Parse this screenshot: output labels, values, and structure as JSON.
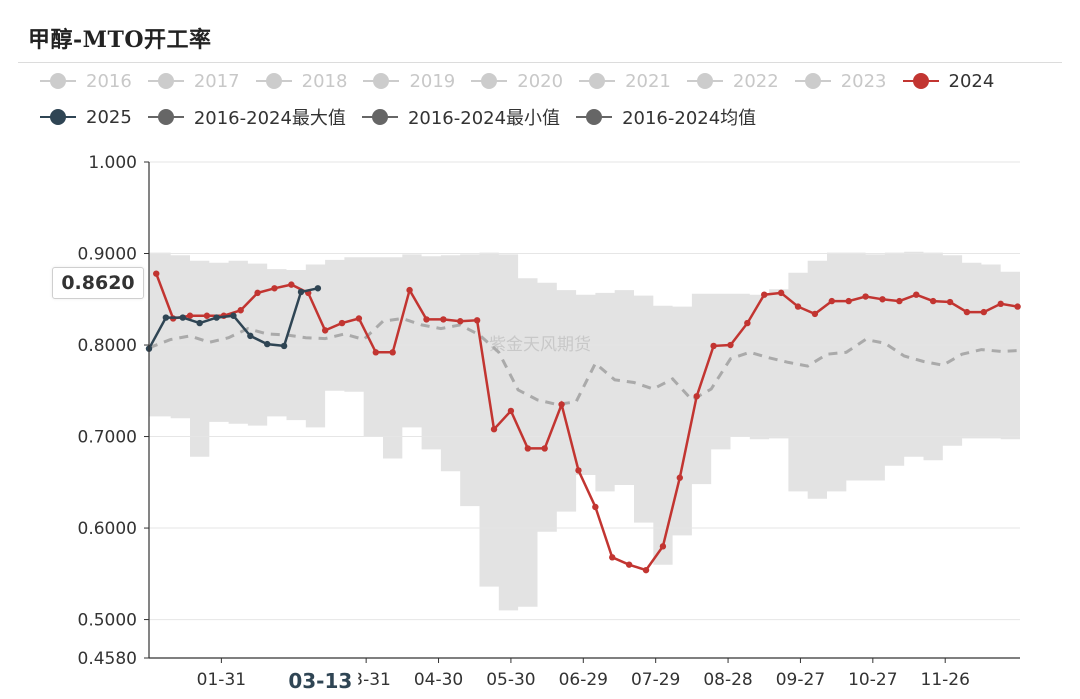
{
  "title": "甲醇-MTO开工率",
  "watermark": "紫金天风期货",
  "pointer": {
    "value_label": "0.8620",
    "x_label": "03-13"
  },
  "legend": [
    {
      "label": "2016",
      "color": "#cccccc",
      "active": false
    },
    {
      "label": "2017",
      "color": "#cccccc",
      "active": false
    },
    {
      "label": "2018",
      "color": "#cccccc",
      "active": false
    },
    {
      "label": "2019",
      "color": "#cccccc",
      "active": false
    },
    {
      "label": "2020",
      "color": "#cccccc",
      "active": false
    },
    {
      "label": "2021",
      "color": "#cccccc",
      "active": false
    },
    {
      "label": "2022",
      "color": "#cccccc",
      "active": false
    },
    {
      "label": "2023",
      "color": "#cccccc",
      "active": false
    },
    {
      "label": "2024",
      "color": "#c23531",
      "active": true
    },
    {
      "label": "2025",
      "color": "#2f4554",
      "active": true
    },
    {
      "label": "2016-2024最大值",
      "color": "#666666",
      "active": true
    },
    {
      "label": "2016-2024最小值",
      "color": "#666666",
      "active": true
    },
    {
      "label": "2016-2024均值",
      "color": "#666666",
      "active": true
    }
  ],
  "chart_data": {
    "type": "line",
    "title": "甲醇-MTO开工率",
    "x_ticks": [
      "01-31",
      "03-31",
      "04-30",
      "05-30",
      "06-29",
      "07-29",
      "08-28",
      "09-27",
      "10-27",
      "11-26"
    ],
    "y_ticks": [
      "1.000",
      "0.9000",
      "0.8000",
      "0.7000",
      "0.6000",
      "0.5000",
      "0.4580"
    ],
    "ylim": [
      0.458,
      1.0
    ],
    "grid": "horizontal",
    "legend_position": "top",
    "series": [
      {
        "name": "2024",
        "color": "#c23531",
        "x": [
          4,
          11,
          18,
          25,
          32,
          39,
          46,
          53,
          60,
          67,
          74,
          81,
          88,
          95,
          102,
          109,
          116,
          123,
          130,
          137,
          144,
          151,
          158,
          165,
          172,
          179,
          186,
          193,
          200,
          207,
          214,
          221,
          228,
          235,
          242,
          249,
          256,
          263,
          270,
          277,
          284,
          291,
          298,
          305,
          312,
          319,
          326,
          333,
          340,
          347,
          354,
          361
        ],
        "values": [
          0.878,
          0.829,
          0.832,
          0.832,
          0.832,
          0.838,
          0.857,
          0.862,
          0.866,
          0.857,
          0.816,
          0.824,
          0.829,
          0.792,
          0.792,
          0.86,
          0.828,
          0.828,
          0.826,
          0.827,
          0.708,
          0.728,
          0.687,
          0.687,
          0.735,
          0.663,
          0.623,
          0.568,
          0.56,
          0.554,
          0.58,
          0.655,
          0.744,
          0.799,
          0.8,
          0.824,
          0.855,
          0.857,
          0.842,
          0.834,
          0.848,
          0.848,
          0.853,
          0.85,
          0.848,
          0.855,
          0.848,
          0.847,
          0.836,
          0.836,
          0.845,
          0.842
        ]
      },
      {
        "name": "2025",
        "color": "#2f4554",
        "x": [
          1,
          8,
          15,
          22,
          29,
          36,
          43,
          50,
          57,
          64,
          71
        ],
        "values": [
          0.796,
          0.83,
          0.83,
          0.824,
          0.83,
          0.832,
          0.81,
          0.801,
          0.799,
          0.858,
          0.862
        ]
      },
      {
        "name": "2016-2024均值",
        "color": "#aaaaaa",
        "x": [
          1,
          10,
          18,
          26,
          34,
          42,
          50,
          58,
          66,
          74,
          82,
          90,
          98,
          106,
          114,
          122,
          130,
          138,
          146,
          154,
          162,
          170,
          178,
          186,
          194,
          202,
          210,
          218,
          226,
          234,
          242,
          250,
          258,
          266,
          274,
          282,
          290,
          298,
          306,
          314,
          322,
          330,
          338,
          346,
          354,
          362
        ],
        "values": [
          0.797,
          0.806,
          0.81,
          0.803,
          0.808,
          0.818,
          0.812,
          0.811,
          0.808,
          0.807,
          0.812,
          0.806,
          0.826,
          0.829,
          0.822,
          0.818,
          0.822,
          0.811,
          0.792,
          0.751,
          0.74,
          0.735,
          0.738,
          0.78,
          0.762,
          0.759,
          0.752,
          0.763,
          0.74,
          0.752,
          0.785,
          0.792,
          0.786,
          0.781,
          0.777,
          0.79,
          0.792,
          0.806,
          0.802,
          0.788,
          0.782,
          0.778,
          0.79,
          0.795,
          0.793,
          0.794
        ]
      },
      {
        "name": "2016-2024最大值",
        "color": "#e3e3e3",
        "x": [
          1,
          10,
          18,
          26,
          34,
          42,
          50,
          58,
          66,
          74,
          82,
          90,
          98,
          106,
          114,
          122,
          130,
          138,
          146,
          154,
          162,
          170,
          178,
          186,
          194,
          202,
          210,
          218,
          226,
          234,
          242,
          250,
          258,
          266,
          274,
          282,
          290,
          298,
          306,
          314,
          322,
          330,
          338,
          346,
          354,
          362
        ],
        "values": [
          0.901,
          0.898,
          0.892,
          0.89,
          0.892,
          0.889,
          0.883,
          0.882,
          0.888,
          0.893,
          0.896,
          0.896,
          0.896,
          0.899,
          0.897,
          0.898,
          0.899,
          0.901,
          0.899,
          0.873,
          0.868,
          0.86,
          0.855,
          0.857,
          0.86,
          0.854,
          0.843,
          0.842,
          0.856,
          0.856,
          0.856,
          0.855,
          0.861,
          0.879,
          0.892,
          0.901,
          0.901,
          0.899,
          0.901,
          0.902,
          0.901,
          0.898,
          0.89,
          0.888,
          0.88,
          0.88
        ]
      },
      {
        "name": "2016-2024最小值",
        "color": "#e3e3e3",
        "x": [
          1,
          10,
          18,
          26,
          34,
          42,
          50,
          58,
          66,
          74,
          82,
          90,
          98,
          106,
          114,
          122,
          130,
          138,
          146,
          154,
          162,
          170,
          178,
          186,
          194,
          202,
          210,
          218,
          226,
          234,
          242,
          250,
          258,
          266,
          274,
          282,
          290,
          298,
          306,
          314,
          322,
          330,
          338,
          346,
          354,
          362
        ],
        "values": [
          0.722,
          0.72,
          0.678,
          0.716,
          0.714,
          0.712,
          0.722,
          0.718,
          0.71,
          0.75,
          0.749,
          0.7,
          0.676,
          0.71,
          0.686,
          0.662,
          0.624,
          0.536,
          0.51,
          0.514,
          0.596,
          0.618,
          0.658,
          0.64,
          0.647,
          0.606,
          0.56,
          0.592,
          0.648,
          0.686,
          0.7,
          0.697,
          0.698,
          0.64,
          0.632,
          0.64,
          0.652,
          0.652,
          0.668,
          0.678,
          0.674,
          0.69,
          0.698,
          0.698,
          0.697,
          0.74
        ]
      }
    ]
  }
}
